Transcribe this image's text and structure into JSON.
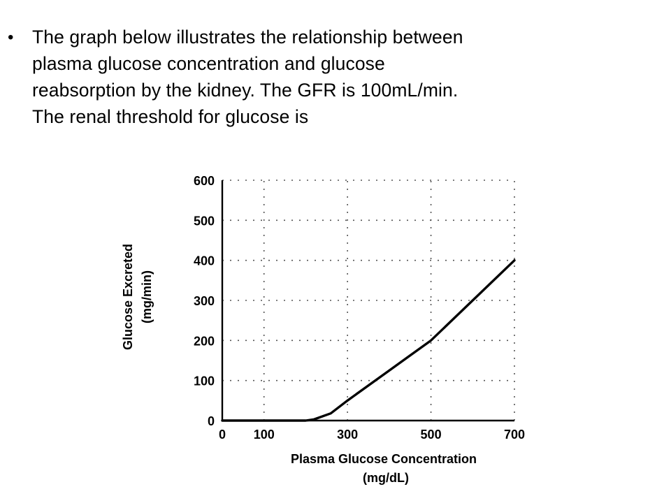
{
  "question": {
    "bullet": "•",
    "text": "The graph below illustrates the relationship between\nplasma glucose concentration and glucose\nreabsorption by the kidney. The GFR is 100mL/min.\nThe renal threshold for glucose is"
  },
  "chart_data": {
    "type": "line",
    "title": "",
    "xlabel_line1": "Plasma Glucose Concentration",
    "xlabel_line2": "(mg/dL)",
    "ylabel_line1": "Glucose Excreted",
    "ylabel_line2": "(mg/min)",
    "xlim": [
      0,
      700
    ],
    "ylim": [
      0,
      600
    ],
    "xticks": [
      0,
      100,
      300,
      500,
      700
    ],
    "yticks": [
      0,
      100,
      200,
      300,
      400,
      500,
      600
    ],
    "grid": "dotted",
    "series": [
      {
        "x": [
          0,
          200,
          220,
          260,
          300,
          400,
          500,
          600,
          700
        ],
        "y": [
          0,
          0,
          3,
          18,
          50,
          125,
          200,
          300,
          400
        ]
      }
    ],
    "line_color": "#000000"
  }
}
